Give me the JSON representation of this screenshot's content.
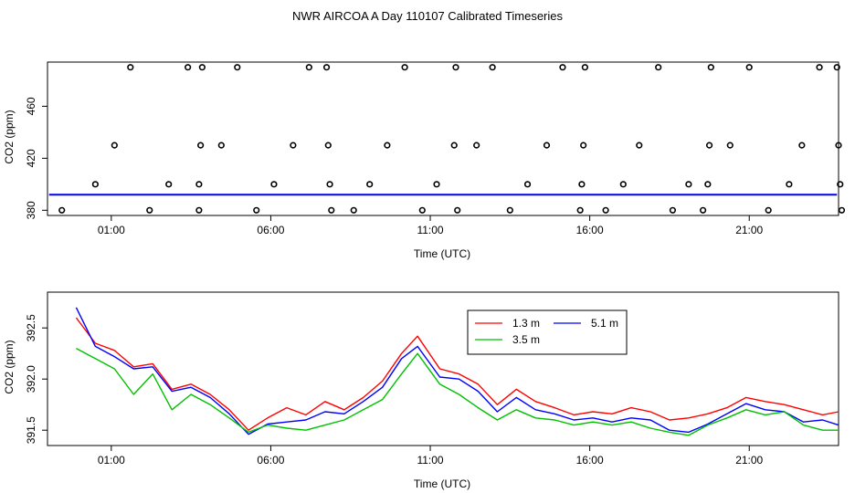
{
  "figure_title": "NWR AIRCOA A  Day 110107  Calibrated Timeseries",
  "chart_data": [
    {
      "type": "scatter",
      "title": "",
      "xlabel": "Time (UTC)",
      "ylabel": "CO2 (ppm)",
      "xlim": [
        -1.0,
        23.8
      ],
      "ylim": [
        376,
        494
      ],
      "xticks": [
        1,
        6,
        11,
        16,
        21
      ],
      "xtick_labels": [
        "01:00",
        "06:00",
        "11:00",
        "16:00",
        "21:00"
      ],
      "yticks": [
        380,
        420,
        460
      ],
      "ytick_labels": [
        "380",
        "420",
        "460"
      ],
      "series_color": "#0000ff",
      "points": {
        "x": [
          -0.55,
          0.5,
          1.1,
          1.6,
          2.2,
          2.8,
          3.4,
          3.75,
          3.75,
          3.8,
          3.85,
          4.45,
          4.95,
          5.55,
          6.1,
          6.7,
          7.2,
          7.75,
          7.8,
          7.85,
          7.9,
          8.6,
          9.1,
          9.65,
          10.2,
          10.75,
          11.2,
          11.75,
          11.8,
          11.85,
          12.45,
          12.95,
          13.5,
          14.05,
          14.65,
          15.15,
          15.7,
          15.75,
          15.8,
          15.85,
          16.5,
          17.05,
          17.55,
          18.15,
          18.6,
          19.1,
          19.55,
          19.7,
          19.75,
          19.8,
          20.4,
          21.0,
          21.6,
          22.25,
          22.65,
          23.2,
          23.75,
          23.8,
          23.85,
          23.9
        ],
        "y": [
          380,
          400,
          430,
          490,
          380,
          400,
          490,
          380,
          400,
          430,
          490,
          430,
          490,
          380,
          400,
          430,
          490,
          490,
          430,
          400,
          380,
          380,
          400,
          430,
          490,
          380,
          400,
          430,
          490,
          380,
          430,
          490,
          380,
          400,
          430,
          490,
          380,
          400,
          430,
          490,
          380,
          400,
          430,
          490,
          380,
          400,
          380,
          400,
          430,
          490,
          430,
          490,
          380,
          400,
          430,
          490,
          490,
          430,
          400,
          380
        ]
      },
      "baseline": {
        "x": [
          -1.0,
          23.8
        ],
        "y": 392.0
      }
    },
    {
      "type": "line",
      "title": "",
      "xlabel": "Time (UTC)",
      "ylabel": "CO2 (ppm)",
      "xlim": [
        -1.0,
        23.8
      ],
      "ylim": [
        391.35,
        392.85
      ],
      "xticks": [
        1,
        6,
        11,
        16,
        21
      ],
      "xtick_labels": [
        "01:00",
        "06:00",
        "11:00",
        "16:00",
        "21:00"
      ],
      "yticks": [
        391.5,
        392.0,
        392.5
      ],
      "ytick_labels": [
        "391.5",
        "392.0",
        "392.5"
      ],
      "legend": {
        "position": "top-center",
        "entries": [
          "1.3 m",
          "5.1 m",
          "3.5 m"
        ]
      },
      "x": [
        -0.1,
        0.5,
        1.1,
        1.7,
        2.3,
        2.9,
        3.5,
        4.1,
        4.7,
        5.3,
        5.9,
        6.5,
        7.1,
        7.7,
        8.3,
        8.9,
        9.5,
        10.1,
        10.6,
        11.3,
        11.9,
        12.5,
        13.1,
        13.7,
        14.3,
        14.9,
        15.5,
        16.1,
        16.7,
        17.3,
        17.9,
        18.5,
        19.1,
        19.7,
        20.3,
        20.9,
        21.5,
        22.1,
        22.7,
        23.3,
        23.8
      ],
      "series": [
        {
          "name": "1.3 m",
          "color": "#ff0000",
          "values": [
            392.6,
            392.35,
            392.28,
            392.12,
            392.15,
            391.9,
            391.95,
            391.85,
            391.7,
            391.5,
            391.62,
            391.72,
            391.65,
            391.78,
            391.7,
            391.82,
            391.98,
            392.25,
            392.42,
            392.1,
            392.05,
            391.95,
            391.75,
            391.9,
            391.78,
            391.72,
            391.65,
            391.68,
            391.66,
            391.72,
            391.68,
            391.6,
            391.62,
            391.66,
            391.72,
            391.82,
            391.78,
            391.75,
            391.7,
            391.65,
            391.68
          ]
        },
        {
          "name": "5.1 m",
          "color": "#0000ff",
          "values": [
            392.7,
            392.32,
            392.22,
            392.1,
            392.12,
            391.88,
            391.92,
            391.82,
            391.66,
            391.46,
            391.56,
            391.58,
            391.6,
            391.68,
            391.66,
            391.78,
            391.92,
            392.2,
            392.32,
            392.02,
            392.0,
            391.88,
            391.68,
            391.82,
            391.7,
            391.66,
            391.6,
            391.62,
            391.58,
            391.62,
            391.6,
            391.5,
            391.48,
            391.56,
            391.66,
            391.76,
            391.7,
            391.68,
            391.58,
            391.6,
            391.55
          ]
        },
        {
          "name": "3.5 m",
          "color": "#00c000",
          "values": [
            392.3,
            392.2,
            392.1,
            391.85,
            392.05,
            391.7,
            391.85,
            391.75,
            391.62,
            391.48,
            391.55,
            391.52,
            391.5,
            391.55,
            391.6,
            391.7,
            391.8,
            392.05,
            392.25,
            391.95,
            391.85,
            391.72,
            391.6,
            391.7,
            391.62,
            391.6,
            391.55,
            391.58,
            391.55,
            391.58,
            391.52,
            391.48,
            391.45,
            391.55,
            391.62,
            391.7,
            391.65,
            391.68,
            391.55,
            391.5,
            391.5
          ]
        }
      ]
    }
  ]
}
